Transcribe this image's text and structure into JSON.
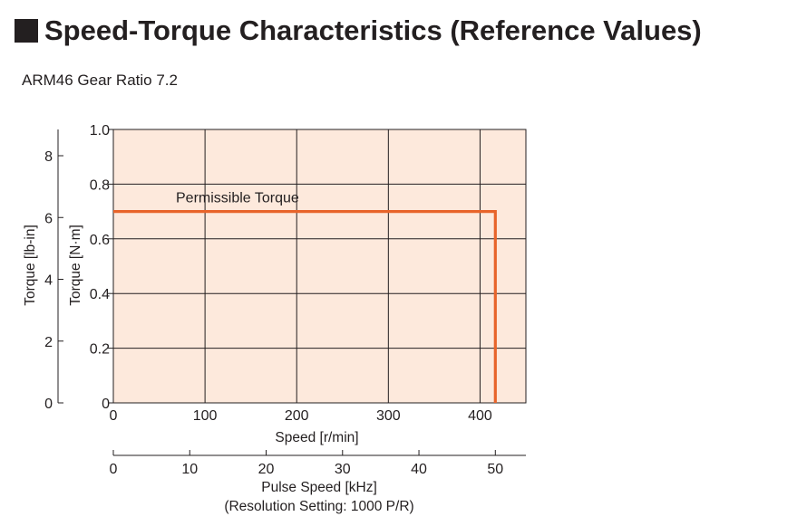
{
  "header": {
    "title": "Speed-Torque Characteristics (Reference Values)",
    "subtitle": "ARM46 Gear Ratio 7.2"
  },
  "chart_data": {
    "type": "line",
    "title": "Speed-Torque Characteristics (Reference Values)",
    "subtitle": "ARM46 Gear Ratio 7.2",
    "xlabel": "Speed [r/min]",
    "ylabel": "Torque [N·m]",
    "xlim": [
      0,
      450
    ],
    "ylim": [
      0,
      1.0
    ],
    "x_ticks": [
      0,
      100,
      200,
      300,
      400
    ],
    "x_tick_labels": [
      "0",
      "100",
      "200",
      "300",
      "400"
    ],
    "y_ticks": [
      0,
      0.2,
      0.4,
      0.6,
      0.8,
      1.0
    ],
    "y_tick_labels": [
      "0",
      "0.2",
      "0.4",
      "0.6",
      "0.8",
      "1.0"
    ],
    "grid": true,
    "plot_background": "#fde9dc",
    "line_color": "#e8642a",
    "series": [
      {
        "name": "Permissible Torque",
        "x": [
          0,
          416.7,
          416.7
        ],
        "y": [
          0.7,
          0.7,
          0
        ]
      }
    ],
    "secondary_y_axis": {
      "label": "Torque [lb-in]",
      "ticks": [
        0,
        2,
        4,
        6,
        8
      ],
      "tick_labels": [
        "0",
        "2",
        "4",
        "6",
        "8"
      ],
      "lim": [
        0,
        8.85
      ]
    },
    "secondary_x_axis": {
      "label": "Pulse Speed [kHz]",
      "note": "(Resolution Setting: 1000 P/R)",
      "ticks": [
        0,
        10,
        20,
        30,
        40,
        50
      ],
      "tick_labels": [
        "0",
        "10",
        "20",
        "30",
        "40",
        "50"
      ],
      "lim": [
        0,
        54
      ]
    }
  }
}
